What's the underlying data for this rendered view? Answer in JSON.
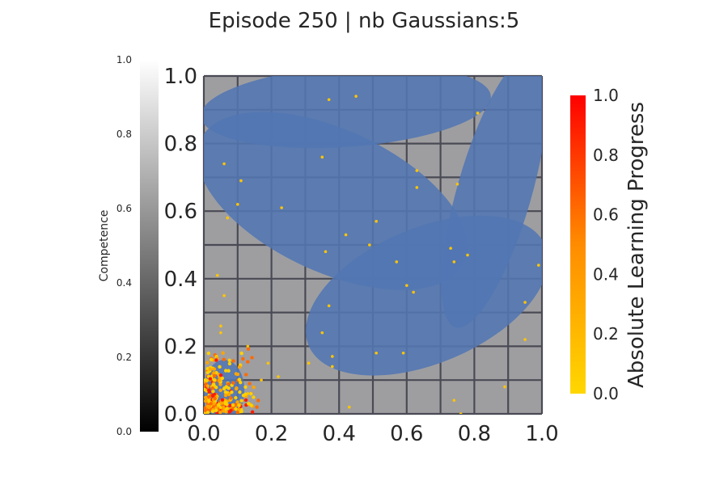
{
  "title": "Episode 250 | nb Gaussians:5",
  "chart_data": {
    "type": "scatter",
    "title": "Episode 250 | nb Gaussians:5",
    "xlim": [
      0,
      1
    ],
    "ylim": [
      0,
      1
    ],
    "x_ticks": [
      "0.0",
      "0.2",
      "0.4",
      "0.6",
      "0.8",
      "1.0"
    ],
    "y_ticks": [
      "0.0",
      "0.2",
      "0.4",
      "0.6",
      "0.8",
      "1.0"
    ],
    "grid": true,
    "competence_colorbar": {
      "label": "Competence",
      "range": [
        0,
        1
      ],
      "ticks": [
        "0.0",
        "0.2",
        "0.4",
        "0.6",
        "0.8",
        "1.0"
      ],
      "colors": [
        "#000000",
        "#ffffff"
      ]
    },
    "alp_colorbar": {
      "label": "Absolute Learning Progress",
      "range": [
        0,
        1
      ],
      "ticks": [
        "0.0",
        "0.2",
        "0.4",
        "0.6",
        "0.8",
        "1.0"
      ],
      "colors": [
        "#ffd700",
        "#ff0000"
      ]
    },
    "background_color": "#9e9ea1",
    "gaussian_color": "#5276b3",
    "gaussians": [
      {
        "cx": 0.42,
        "cy": 0.91,
        "rx": 0.43,
        "ry": 0.12,
        "angle_deg": 4
      },
      {
        "cx": 0.38,
        "cy": 0.63,
        "rx": 0.43,
        "ry": 0.21,
        "angle_deg": -25
      },
      {
        "cx": 0.66,
        "cy": 0.35,
        "rx": 0.38,
        "ry": 0.2,
        "angle_deg": 23
      },
      {
        "cx": 0.86,
        "cy": 0.66,
        "rx": 0.42,
        "ry": 0.11,
        "angle_deg": 74
      },
      {
        "cx": 0.06,
        "cy": 0.07,
        "rx": 0.06,
        "ry": 0.09,
        "angle_deg": 0
      }
    ],
    "sparse_points": [
      [
        0.37,
        0.93
      ],
      [
        0.45,
        0.94
      ],
      [
        0.81,
        0.89
      ],
      [
        0.06,
        0.74
      ],
      [
        0.35,
        0.76
      ],
      [
        0.63,
        0.72
      ],
      [
        0.11,
        0.69
      ],
      [
        0.63,
        0.67
      ],
      [
        0.75,
        0.68
      ],
      [
        0.1,
        0.62
      ],
      [
        0.23,
        0.61
      ],
      [
        0.07,
        0.58
      ],
      [
        0.51,
        0.57
      ],
      [
        0.42,
        0.53
      ],
      [
        0.49,
        0.5
      ],
      [
        0.73,
        0.49
      ],
      [
        0.36,
        0.48
      ],
      [
        0.78,
        0.47
      ],
      [
        0.57,
        0.45
      ],
      [
        0.74,
        0.45
      ],
      [
        0.04,
        0.41
      ],
      [
        0.99,
        0.44
      ],
      [
        0.6,
        0.38
      ],
      [
        0.62,
        0.36
      ],
      [
        0.06,
        0.35
      ],
      [
        0.95,
        0.33
      ],
      [
        0.37,
        0.32
      ],
      [
        0.05,
        0.26
      ],
      [
        0.05,
        0.24
      ],
      [
        0.35,
        0.24
      ],
      [
        0.95,
        0.22
      ],
      [
        0.13,
        0.2
      ],
      [
        0.51,
        0.18
      ],
      [
        0.59,
        0.18
      ],
      [
        0.38,
        0.17
      ],
      [
        0.31,
        0.15
      ],
      [
        0.38,
        0.14
      ],
      [
        0.22,
        0.11
      ],
      [
        0.17,
        0.1
      ],
      [
        0.89,
        0.08
      ],
      [
        0.74,
        0.04
      ],
      [
        0.43,
        0.02
      ],
      [
        0.76,
        0.0
      ],
      [
        0.13,
        0.06
      ],
      [
        0.19,
        0.15
      ]
    ]
  }
}
